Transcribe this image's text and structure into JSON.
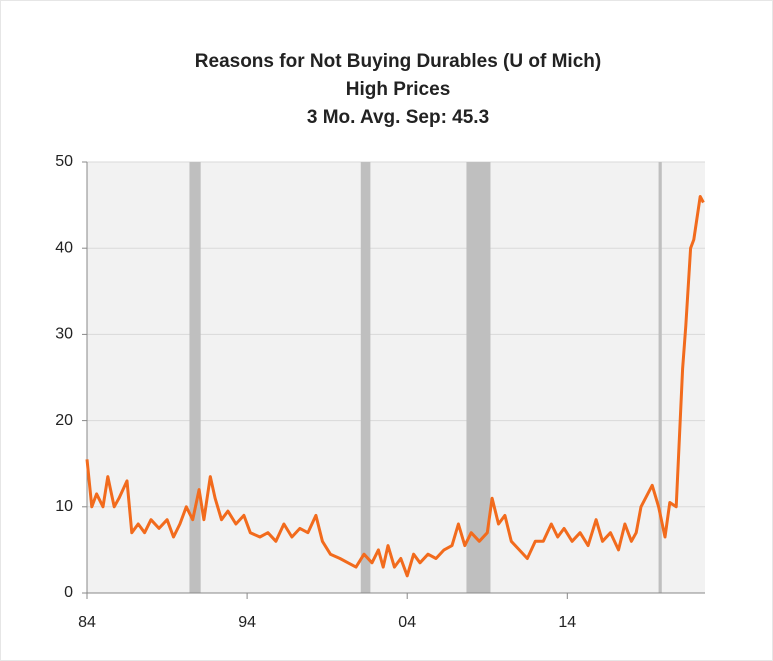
{
  "chart_data": {
    "type": "line",
    "title": "Reasons for Not Buying Durables (U of Mich)",
    "subtitle": "High Prices",
    "annotation": "3 Mo. Avg.  Sep: 45.3",
    "xlim": [
      1984,
      2022.6
    ],
    "ylim": [
      0,
      50
    ],
    "yticks": [
      0,
      10,
      20,
      30,
      40,
      50
    ],
    "xticks": [
      {
        "value": 1984,
        "label": "84"
      },
      {
        "value": 1994,
        "label": "94"
      },
      {
        "value": 2004,
        "label": "04"
      },
      {
        "value": 2014,
        "label": "14"
      }
    ],
    "grid": true,
    "recessions": [
      [
        1990.4,
        1991.1
      ],
      [
        2001.1,
        2001.7
      ],
      [
        2007.7,
        2009.2
      ],
      [
        2019.7,
        2019.9
      ]
    ],
    "recession_color": "#bfbfbf",
    "series": [
      {
        "name": "High Prices",
        "color": "#f26b1d",
        "x": [
          1984.0,
          1984.3,
          1984.6,
          1985.0,
          1985.3,
          1985.7,
          1986.0,
          1986.5,
          1986.8,
          1987.2,
          1987.6,
          1988.0,
          1988.5,
          1989.0,
          1989.4,
          1989.8,
          1990.2,
          1990.6,
          1991.0,
          1991.3,
          1991.7,
          1992.0,
          1992.4,
          1992.8,
          1993.3,
          1993.8,
          1994.2,
          1994.8,
          1995.3,
          1995.8,
          1996.3,
          1996.8,
          1997.3,
          1997.8,
          1998.3,
          1998.7,
          1999.2,
          1999.8,
          2000.3,
          2000.8,
          2001.3,
          2001.8,
          2002.2,
          2002.5,
          2002.8,
          2003.2,
          2003.6,
          2004.0,
          2004.4,
          2004.8,
          2005.3,
          2005.8,
          2006.3,
          2006.8,
          2007.2,
          2007.6,
          2008.0,
          2008.5,
          2009.0,
          2009.3,
          2009.7,
          2010.1,
          2010.5,
          2011.0,
          2011.5,
          2012.0,
          2012.5,
          2013.0,
          2013.4,
          2013.8,
          2014.3,
          2014.8,
          2015.3,
          2015.8,
          2016.2,
          2016.7,
          2017.2,
          2017.6,
          2018.0,
          2018.3,
          2018.6,
          2019.3,
          2019.7,
          2020.1,
          2020.4,
          2020.8,
          2021.2,
          2021.4,
          2021.7,
          2021.9,
          2022.3,
          2022.5
        ],
        "values": [
          15.5,
          10,
          11.5,
          10,
          13.5,
          10,
          11,
          13,
          7,
          8,
          7,
          8.5,
          7.5,
          8.5,
          6.5,
          8,
          10,
          8.5,
          12,
          8.5,
          13.5,
          11,
          8.5,
          9.5,
          8,
          9,
          7,
          6.5,
          7,
          6,
          8,
          6.5,
          7.5,
          7,
          9,
          6,
          4.5,
          4,
          3.5,
          3,
          4.5,
          3.5,
          5,
          3,
          5.5,
          3,
          4,
          2,
          4.5,
          3.5,
          4.5,
          4,
          5,
          5.5,
          8,
          5.5,
          7,
          6,
          7,
          11,
          8,
          9,
          6,
          5,
          4,
          6,
          6,
          8,
          6.5,
          7.5,
          6,
          7,
          5.5,
          8.5,
          6,
          7,
          5,
          8,
          6,
          7,
          10,
          12.5,
          10,
          6.5,
          10.5,
          10,
          26,
          31,
          40,
          41,
          46,
          45.3
        ]
      }
    ]
  }
}
